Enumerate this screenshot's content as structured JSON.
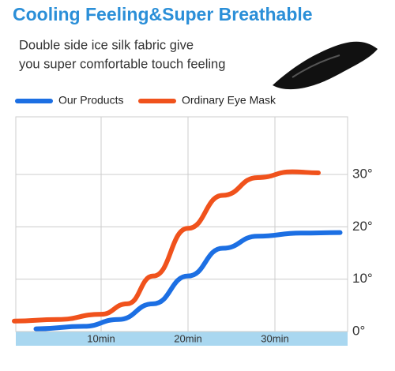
{
  "chart_data": {
    "type": "line",
    "title": "Cooling Feeling&Super Breathable",
    "subtitle": [
      "Double side ice silk fabric give",
      "you super comfortable touch feeling"
    ],
    "xlim": [
      0,
      38
    ],
    "xticks": [
      {
        "value": 10,
        "label": "10min"
      },
      {
        "value": 20,
        "label": "20min"
      },
      {
        "value": 30,
        "label": "30min"
      }
    ],
    "ylim": [
      0,
      41
    ],
    "yticks": [
      {
        "value": 0,
        "label": "0°"
      },
      {
        "value": 10,
        "label": "10°"
      },
      {
        "value": 20,
        "label": "20°"
      },
      {
        "value": 30,
        "label": "30°"
      }
    ],
    "grid": true,
    "legend": "top",
    "series": [
      {
        "name": "Our Products",
        "color": "#1c6fe3",
        "x": [
          2.5,
          8,
          12,
          16,
          20,
          24,
          28,
          33,
          37.5
        ],
        "values": [
          0.5,
          1,
          2.3,
          5.3,
          10.6,
          15.9,
          18.2,
          18.8,
          18.9
        ]
      },
      {
        "name": "Ordinary Eye Mask",
        "color": "#f0521c",
        "x": [
          0,
          5,
          10,
          13,
          16,
          20,
          24,
          28,
          32,
          35
        ],
        "values": [
          2,
          2.3,
          3.3,
          5.3,
          10.6,
          19.7,
          26,
          29.4,
          30.5,
          30.3
        ]
      }
    ]
  }
}
